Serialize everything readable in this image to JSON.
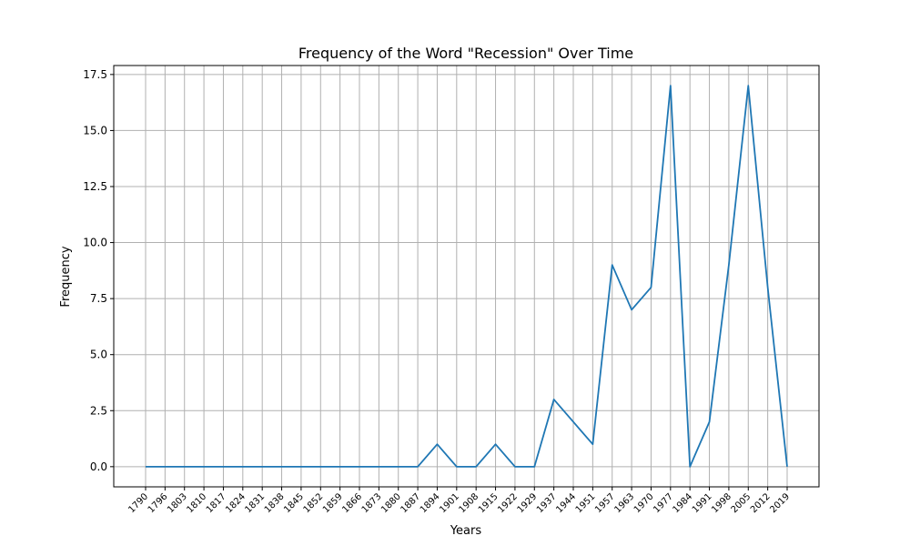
{
  "chart_data": {
    "type": "line",
    "title": "Frequency of the Word \"Recession\" Over Time",
    "xlabel": "Years",
    "ylabel": "Frequency",
    "ylim": [
      -0.9,
      17.9
    ],
    "yticks": [
      "0.0",
      "2.5",
      "5.0",
      "7.5",
      "10.0",
      "12.5",
      "15.0",
      "17.5"
    ],
    "ytick_values": [
      0,
      2.5,
      5,
      7.5,
      10,
      12.5,
      15,
      17.5
    ],
    "grid": true,
    "legend": "none",
    "line_color": "#1f77b4",
    "x": [
      "1790",
      "1796",
      "1803",
      "1810",
      "1817",
      "1824",
      "1831",
      "1838",
      "1845",
      "1852",
      "1859",
      "1866",
      "1873",
      "1880",
      "1887",
      "1894",
      "1901",
      "1908",
      "1915",
      "1922",
      "1929",
      "1937",
      "1944",
      "1951",
      "1957",
      "1963",
      "1970",
      "1977",
      "1984",
      "1991",
      "1998",
      "2005",
      "2012",
      "2019"
    ],
    "series": [
      {
        "values": [
          0,
          0,
          0,
          0,
          0,
          0,
          0,
          0,
          0,
          0,
          0,
          0,
          0,
          0,
          0,
          1,
          0,
          0,
          1,
          0,
          0,
          3,
          2,
          1,
          9,
          7,
          8,
          17,
          0,
          2,
          9,
          17,
          8,
          0
        ]
      }
    ]
  }
}
